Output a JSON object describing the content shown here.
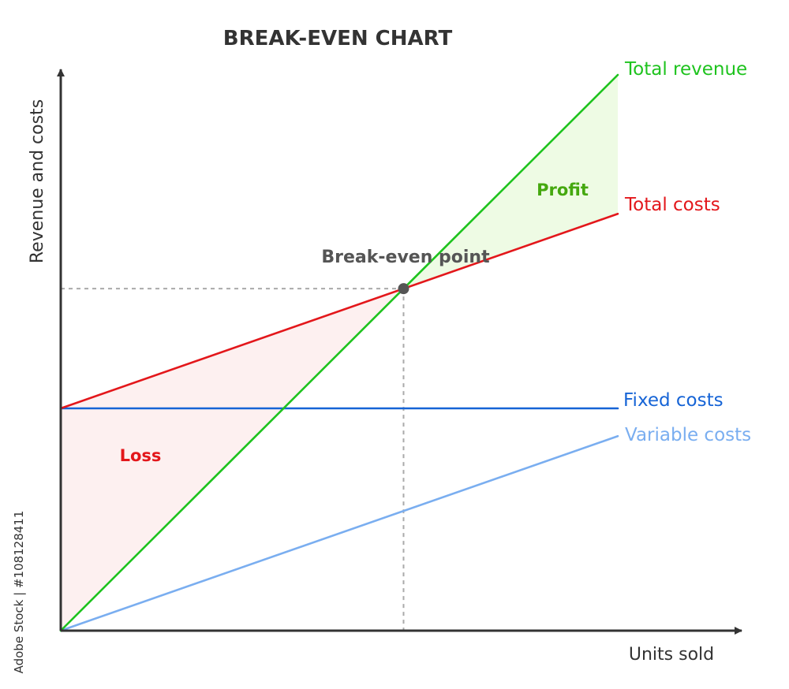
{
  "chart_data": {
    "type": "line",
    "title": "BREAK-EVEN CHART",
    "xlabel": "Units sold",
    "ylabel": "Revenue and costs",
    "xlim": [
      0,
      1
    ],
    "ylim": [
      0,
      1
    ],
    "grid": false,
    "ticks": false,
    "series": [
      {
        "name": "Total revenue",
        "color": "#1ec31e",
        "x": [
          0,
          1
        ],
        "y": [
          0,
          1
        ]
      },
      {
        "name": "Total costs",
        "color": "#e3171b",
        "x": [
          0,
          1
        ],
        "y": [
          0.4,
          0.75
        ]
      },
      {
        "name": "Fixed costs",
        "color": "#1664d6",
        "x": [
          0,
          1
        ],
        "y": [
          0.4,
          0.4
        ]
      },
      {
        "name": "Variable costs",
        "color": "#7aaef0",
        "x": [
          0,
          1
        ],
        "y": [
          0,
          0.35
        ]
      }
    ],
    "regions": [
      {
        "name": "Profit",
        "color": "#45a80f",
        "fill": "#eefbe4"
      },
      {
        "name": "Loss",
        "color": "#e3171b",
        "fill": "#fdf0f0"
      }
    ],
    "break_even": {
      "label": "Break-even point",
      "x": 0.6154,
      "y": 0.6154
    }
  },
  "watermark": "Adobe Stock | #108128411"
}
